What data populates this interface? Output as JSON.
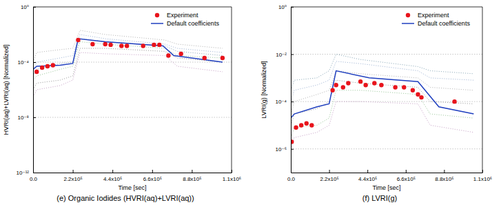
{
  "chart_data": [
    {
      "type": "line",
      "title": "(e) Organic Iodides (HVRI(aq)+LVRI(aq))",
      "x_label": "Time [sec]",
      "y_label": "HVRI(aq)+LVRI(aq) [Normalized]",
      "log": "y",
      "grid": true,
      "legend": "upper right",
      "xlim": [
        0,
        1100000
      ],
      "xticks": [
        {
          "value": 0,
          "label": "0.0"
        },
        {
          "value": 220000,
          "label": "2.2x10⁵"
        },
        {
          "value": 440000,
          "label": "4.4x10⁵"
        },
        {
          "value": 660000,
          "label": "6.6x10⁵"
        },
        {
          "value": 880000,
          "label": "8.8x10⁵"
        },
        {
          "value": 1100000,
          "label": "1.1x10⁶"
        }
      ],
      "ylim": [
        1e-12,
        1
      ],
      "yticks": [
        {
          "value": 1e-12,
          "label": "10⁻¹²"
        },
        {
          "value": 1e-08,
          "label": "10⁻⁸"
        },
        {
          "value": 0.0001,
          "label": "10⁻⁴"
        },
        {
          "value": 1,
          "label": "10⁰"
        }
      ],
      "series": [
        {
          "name": "Experiment",
          "type": "scatter",
          "marker": "circle",
          "color": "#e8141c",
          "x": [
            20000,
            50000,
            80000,
            110000,
            250000,
            330000,
            400000,
            430000,
            490000,
            520000,
            610000,
            670000,
            700000,
            750000,
            820000,
            950000,
            1050000
          ],
          "values": [
            2e-05,
            4e-05,
            5e-05,
            6e-05,
            0.004,
            0.002,
            0.002,
            0.0018,
            0.0015,
            0.0015,
            0.0015,
            0.0018,
            0.0018,
            0.0003,
            0.0004,
            0.0002,
            0.0002
          ]
        },
        {
          "name": "Default coefficients",
          "type": "line",
          "line_style": "solid",
          "color": "#1f3fbf",
          "x": [
            0,
            1000,
            20000,
            150000,
            220000,
            250000,
            400000,
            720000,
            780000,
            1050000
          ],
          "values": [
            1e-12,
            3e-05,
            5e-05,
            6e-05,
            8e-05,
            0.005,
            0.003,
            0.0015,
            0.0003,
            0.0001
          ]
        },
        {
          "type": "line",
          "line_style": "dotted",
          "color": "#9a9a9a",
          "x": [
            0,
            20000,
            150000,
            220000,
            260000,
            400000,
            730000,
            800000,
            1050000
          ],
          "values": [
            1e-06,
            3e-06,
            5e-06,
            1e-05,
            0.001,
            0.001,
            0.0006,
            0.0002,
            0.0001
          ]
        },
        {
          "type": "line",
          "line_style": "dotted",
          "color": "#9fb4d4",
          "x": [
            0,
            20000,
            150000,
            220000,
            260000,
            400000,
            730000,
            800000,
            1050000
          ],
          "values": [
            3e-05,
            0.0001,
            0.0002,
            0.0003,
            0.01,
            0.005,
            0.002,
            0.001,
            0.0005
          ]
        },
        {
          "type": "line",
          "line_style": "dotted",
          "color": "#9cc79c",
          "x": [
            0,
            20000,
            150000,
            220000,
            260000,
            400000,
            730000,
            800000,
            1050000
          ],
          "values": [
            5e-06,
            1e-05,
            3e-05,
            5e-05,
            0.003,
            0.002,
            0.001,
            0.0003,
            0.0002
          ]
        },
        {
          "type": "line",
          "line_style": "dotted",
          "color": "#b4b4b4",
          "x": [
            0,
            20000,
            150000,
            220000,
            260000,
            400000,
            730000,
            800000,
            1050000
          ],
          "values": [
            0.0001,
            0.0005,
            0.0008,
            0.001,
            0.02,
            0.01,
            0.004,
            0.002,
            0.001
          ]
        },
        {
          "type": "line",
          "line_style": "dotted",
          "color": "#c6a2c6",
          "x": [
            0,
            20000,
            150000,
            220000,
            260000,
            400000,
            730000,
            800000,
            1050000
          ],
          "values": [
            3e-07,
            1e-06,
            2e-06,
            5e-06,
            0.0005,
            0.0004,
            0.0003,
            5e-05,
            2e-05
          ]
        },
        {
          "type": "line",
          "line_style": "dotted",
          "color": "#8aa8b8",
          "x": [
            0,
            20000,
            150000,
            220000,
            260000,
            400000,
            730000,
            800000,
            1050000
          ],
          "values": [
            1e-05,
            3e-05,
            8e-05,
            0.0001,
            0.005,
            0.003,
            0.0015,
            0.0006,
            0.0003
          ]
        }
      ]
    },
    {
      "type": "line",
      "title": "(f) LVRI(g)",
      "x_label": "Time [sec]",
      "y_label": "LVRI(g) [Normalized]",
      "log": "y",
      "grid": true,
      "legend": "upper right",
      "xlim": [
        0,
        1100000
      ],
      "xticks": [
        {
          "value": 0,
          "label": "0.0"
        },
        {
          "value": 220000,
          "label": "2.2x10⁵"
        },
        {
          "value": 440000,
          "label": "4.4x10⁵"
        },
        {
          "value": 660000,
          "label": "6.6x10⁵"
        },
        {
          "value": 880000,
          "label": "8.8x10⁵"
        },
        {
          "value": 1100000,
          "label": "1.1x10⁶"
        }
      ],
      "ylim": [
        1e-07,
        1
      ],
      "yticks": [
        {
          "value": 1e-06,
          "label": "10⁻⁶"
        },
        {
          "value": 0.0001,
          "label": "10⁻⁴"
        },
        {
          "value": 0.01,
          "label": "10⁻²"
        },
        {
          "value": 1,
          "label": "10⁰"
        }
      ],
      "series": [
        {
          "name": "Experiment",
          "type": "scatter",
          "marker": "circle",
          "color": "#e8141c",
          "x": [
            5000,
            30000,
            60000,
            90000,
            120000,
            240000,
            260000,
            300000,
            330000,
            400000,
            430000,
            480000,
            520000,
            600000,
            650000,
            700000,
            730000,
            750000,
            940000
          ],
          "values": [
            2e-06,
            8e-06,
            1e-05,
            1.2e-05,
            1e-05,
            0.0003,
            0.0005,
            0.0004,
            0.0006,
            0.0007,
            0.0005,
            0.0006,
            0.0005,
            0.0004,
            0.0004,
            0.0003,
            0.0002,
            0.00015,
            0.0001
          ]
        },
        {
          "name": "Default coefficients",
          "type": "line",
          "line_style": "solid",
          "color": "#1f3fbf",
          "x": [
            0,
            20000,
            150000,
            220000,
            260000,
            450000,
            730000,
            850000,
            1050000
          ],
          "values": [
            2e-05,
            3e-05,
            6e-05,
            8e-05,
            0.002,
            0.001,
            0.0007,
            6e-05,
            3e-05
          ]
        },
        {
          "type": "line",
          "line_style": "dotted",
          "color": "#9a9a9a",
          "x": [
            0,
            20000,
            150000,
            220000,
            260000,
            400000,
            730000,
            800000,
            1050000
          ],
          "values": [
            1e-05,
            3e-05,
            5e-05,
            0.0001,
            0.0008,
            0.0006,
            0.0004,
            0.0001,
            8e-05
          ]
        },
        {
          "type": "line",
          "line_style": "dotted",
          "color": "#9fb4d4",
          "x": [
            0,
            20000,
            150000,
            220000,
            260000,
            400000,
            730000,
            800000,
            1050000
          ],
          "values": [
            0.0001,
            0.0003,
            0.0005,
            0.0008,
            0.005,
            0.004,
            0.002,
            0.001,
            0.0008
          ]
        },
        {
          "type": "line",
          "line_style": "dotted",
          "color": "#9cc79c",
          "x": [
            0,
            20000,
            150000,
            220000,
            260000,
            400000,
            730000,
            800000,
            1050000
          ],
          "values": [
            3e-06,
            8e-06,
            1e-05,
            2e-05,
            0.0003,
            0.0003,
            0.0002,
            3e-05,
            2e-05
          ]
        },
        {
          "type": "line",
          "line_style": "dotted",
          "color": "#b4b4b4",
          "x": [
            0,
            20000,
            150000,
            220000,
            260000,
            400000,
            730000,
            800000,
            1050000
          ],
          "values": [
            3e-05,
            0.0001,
            0.0002,
            0.0003,
            0.002,
            0.0015,
            0.001,
            0.0004,
            0.0003
          ]
        },
        {
          "type": "line",
          "line_style": "dotted",
          "color": "#c6a2c6",
          "x": [
            0,
            20000,
            150000,
            220000,
            260000,
            400000,
            730000,
            800000,
            1050000
          ],
          "values": [
            1e-06,
            3e-06,
            5e-06,
            1e-05,
            0.0001,
            0.0001,
            8e-05,
            1e-05,
            5e-06
          ]
        },
        {
          "type": "line",
          "line_style": "dotted",
          "color": "#8aa8b8",
          "x": [
            0,
            20000,
            150000,
            220000,
            260000,
            400000,
            730000,
            800000,
            1050000
          ],
          "values": [
            0.0003,
            0.0008,
            0.001,
            0.002,
            0.01,
            0.006,
            0.003,
            0.002,
            0.0015
          ]
        }
      ]
    }
  ]
}
